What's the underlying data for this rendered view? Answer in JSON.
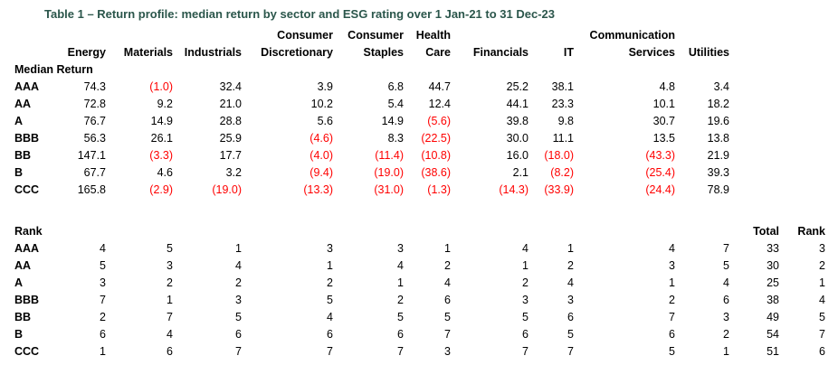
{
  "title": "Table 1 – Return profile: median return by sector and ESG rating over 1 Jan-21 to 31 Dec-23",
  "colors": {
    "title_text": "#2b564b",
    "negative_value": "#ff0000",
    "body_text": "#000000",
    "background": "#ffffff"
  },
  "table": {
    "sector_headers": [
      {
        "line1": "",
        "line2": "Energy"
      },
      {
        "line1": "",
        "line2": "Materials"
      },
      {
        "line1": "",
        "line2": "Industrials"
      },
      {
        "line1": "Consumer",
        "line2": "Discretionary"
      },
      {
        "line1": "Consumer",
        "line2": "Staples"
      },
      {
        "line1": "Health",
        "line2": "Care"
      },
      {
        "line1": "",
        "line2": "Financials"
      },
      {
        "line1": "",
        "line2": "IT"
      },
      {
        "line1": "Communication",
        "line2": "Services"
      },
      {
        "line1": "",
        "line2": "Utilities"
      }
    ],
    "median_return": {
      "section_label": "Median Return",
      "ratings": [
        "AAA",
        "AA",
        "A",
        "BBB",
        "BB",
        "B",
        "CCC"
      ],
      "rows": [
        [
          "74.3",
          "(1.0)",
          "32.4",
          "3.9",
          "6.8",
          "44.7",
          "25.2",
          "38.1",
          "4.8",
          "3.4"
        ],
        [
          "72.8",
          "9.2",
          "21.0",
          "10.2",
          "5.4",
          "12.4",
          "44.1",
          "23.3",
          "10.1",
          "18.2"
        ],
        [
          "76.7",
          "14.9",
          "28.8",
          "5.6",
          "14.9",
          "(5.6)",
          "39.8",
          "9.8",
          "30.7",
          "19.6"
        ],
        [
          "56.3",
          "26.1",
          "25.9",
          "(4.6)",
          "8.3",
          "(22.5)",
          "30.0",
          "11.1",
          "13.5",
          "13.8"
        ],
        [
          "147.1",
          "(3.3)",
          "17.7",
          "(4.0)",
          "(11.4)",
          "(10.8)",
          "16.0",
          "(18.0)",
          "(43.3)",
          "21.9"
        ],
        [
          "67.7",
          "4.6",
          "3.2",
          "(9.4)",
          "(19.0)",
          "(38.6)",
          "2.1",
          "(8.2)",
          "(25.4)",
          "39.3"
        ],
        [
          "165.8",
          "(2.9)",
          "(19.0)",
          "(13.3)",
          "(31.0)",
          "(1.3)",
          "(14.3)",
          "(33.9)",
          "(24.4)",
          "78.9"
        ]
      ]
    },
    "rank": {
      "section_label": "Rank",
      "total_header": "Total",
      "rank_header": "Rank",
      "ratings": [
        "AAA",
        "AA",
        "A",
        "BBB",
        "BB",
        "B",
        "CCC"
      ],
      "rows": [
        [
          "4",
          "5",
          "1",
          "3",
          "3",
          "1",
          "4",
          "1",
          "4",
          "7",
          "33",
          "3"
        ],
        [
          "5",
          "3",
          "4",
          "1",
          "4",
          "2",
          "1",
          "2",
          "3",
          "5",
          "30",
          "2"
        ],
        [
          "3",
          "2",
          "2",
          "2",
          "1",
          "4",
          "2",
          "4",
          "1",
          "4",
          "25",
          "1"
        ],
        [
          "7",
          "1",
          "3",
          "5",
          "2",
          "6",
          "3",
          "3",
          "2",
          "6",
          "38",
          "4"
        ],
        [
          "2",
          "7",
          "5",
          "4",
          "5",
          "5",
          "5",
          "6",
          "7",
          "3",
          "49",
          "5"
        ],
        [
          "6",
          "4",
          "6",
          "6",
          "6",
          "7",
          "6",
          "5",
          "6",
          "2",
          "54",
          "7"
        ],
        [
          "1",
          "6",
          "7",
          "7",
          "7",
          "3",
          "7",
          "7",
          "5",
          "1",
          "51",
          "6"
        ]
      ]
    }
  }
}
